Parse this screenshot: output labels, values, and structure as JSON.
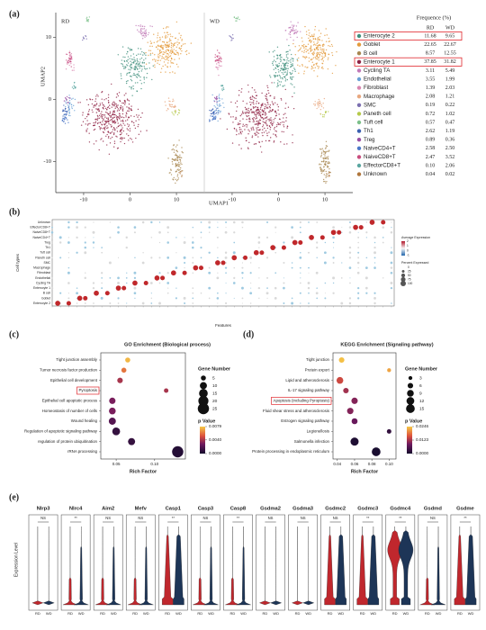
{
  "chart_data": [
    {
      "type": "scatter",
      "panel_label": "(a)",
      "facets": [
        "RD",
        "WD"
      ],
      "x_label": "UMAP1",
      "y_label": "UMAP2",
      "xlim": [
        -16,
        16
      ],
      "ylim": [
        -15,
        14
      ],
      "xticks": [
        -10,
        0,
        10
      ],
      "yticks": [
        -10,
        0,
        10
      ],
      "table": {
        "title": "Frequence (%)",
        "columns": [
          "RD",
          "WD"
        ],
        "highlight_rows": [
          0,
          3
        ],
        "rows": [
          {
            "name": "Enterocyte 2",
            "color": "#3f8f7c",
            "values": [
              "11.68",
              "9.65"
            ]
          },
          {
            "name": "Goblet",
            "color": "#e39a3b",
            "values": [
              "22.65",
              "22.67"
            ]
          },
          {
            "name": "B cell",
            "color": "#a8864f",
            "values": [
              "8.57",
              "12.55"
            ]
          },
          {
            "name": "Enterocyte 1",
            "color": "#8e2142",
            "values": [
              "37.85",
              "31.82"
            ]
          },
          {
            "name": "Cycling TA",
            "color": "#c27ab8",
            "values": [
              "3.11",
              "5.49"
            ]
          },
          {
            "name": "Endothelial",
            "color": "#6aa1d6",
            "values": [
              "3.55",
              "1.99"
            ]
          },
          {
            "name": "Fibroblast",
            "color": "#d986b0",
            "values": [
              "1.39",
              "2.03"
            ]
          },
          {
            "name": "Macrophage",
            "color": "#e8a77f",
            "values": [
              "2.08",
              "1.21"
            ]
          },
          {
            "name": "SMC",
            "color": "#7b6fb0",
            "values": [
              "0.19",
              "0.22"
            ]
          },
          {
            "name": "Paneth cell",
            "color": "#b5c94a",
            "values": [
              "0.72",
              "1.02"
            ]
          },
          {
            "name": "Tuft cell",
            "color": "#7cc08a",
            "values": [
              "0.57",
              "0.47"
            ]
          },
          {
            "name": "Th1",
            "color": "#3b5fb0",
            "values": [
              "2.62",
              "1.19"
            ]
          },
          {
            "name": "Treg",
            "color": "#9a4fa3",
            "values": [
              "0.89",
              "0.36"
            ]
          },
          {
            "name": "NaiveCD4+T",
            "color": "#4c78c8",
            "values": [
              "2.58",
              "2.50"
            ]
          },
          {
            "name": "NaiveCD8+T",
            "color": "#c84c7e",
            "values": [
              "2.47",
              "3.52"
            ]
          },
          {
            "name": "EffectorCD8+T",
            "color": "#5aa6a0",
            "values": [
              "0.10",
              "2.06"
            ]
          },
          {
            "name": "Unknown",
            "color": "#b0763c",
            "values": [
              "0.04",
              "0.02"
            ]
          }
        ]
      }
    },
    {
      "type": "dotplot",
      "panel_label": "(b)",
      "y_label": "Cell types",
      "x_label": "Features",
      "xlim": [
        0,
        62
      ],
      "color_legend_title": "Average Expression",
      "color_legend_ticks": [
        2,
        1,
        0,
        -1
      ],
      "size_legend_title": "Percent Expressed",
      "size_legend_ticks": [
        0,
        25,
        50,
        75,
        100
      ],
      "points": {
        "x": [
          1,
          3,
          5,
          6,
          8,
          10,
          12,
          13,
          15,
          17,
          19,
          20,
          22,
          24,
          26,
          27,
          30,
          31,
          33,
          35,
          37,
          38,
          40,
          42,
          44,
          45,
          47,
          49,
          51,
          52,
          55,
          56,
          58,
          60
        ],
        "y": [
          0,
          0,
          1,
          1,
          2,
          2,
          3,
          3,
          4,
          4,
          5,
          5,
          6,
          6,
          7,
          7,
          8,
          8,
          9,
          9,
          10,
          10,
          11,
          11,
          12,
          12,
          13,
          13,
          14,
          14,
          15,
          15,
          16,
          16
        ],
        "size": [
          90,
          70,
          90,
          70,
          90,
          70,
          90,
          70,
          90,
          70,
          90,
          70,
          90,
          70,
          90,
          70,
          90,
          70,
          90,
          70,
          90,
          70,
          90,
          70,
          90,
          70,
          90,
          70,
          90,
          70,
          90,
          70,
          90,
          70
        ]
      }
    },
    {
      "type": "bubble",
      "panel_label": "(c)",
      "title": "GO Enrichment (Biological process)",
      "categories": [
        "Tight junction assembly",
        "Tumor necrosis factor production",
        "Epithelial cell development",
        "Pyroptosis",
        "Epithelial cell apoptotic process",
        "Homeostasis of number of cells",
        "Wound healing",
        "Regulation of apoptotic signaling pathway",
        "regulation of protein ubiquitination",
        "rRNA processing"
      ],
      "x": [
        0.065,
        0.06,
        0.055,
        0.115,
        0.045,
        0.045,
        0.045,
        0.05,
        0.07,
        0.13
      ],
      "size": [
        5,
        5,
        6,
        4,
        8,
        9,
        10,
        12,
        10,
        25
      ],
      "p_value": [
        0.0075,
        0.006,
        0.004,
        0.004,
        0.003,
        0.003,
        0.002,
        0.001,
        0.001,
        0.0005
      ],
      "highlight": 3,
      "x_label": "Rich Factor",
      "xlim": [
        0.03,
        0.14
      ],
      "xticks": [
        0.05,
        {
          "value": 0.1,
          "label": "0.10"
        }
      ],
      "size_legend_title": "Gene Number",
      "size_legend": [
        5,
        10,
        15,
        20,
        25
      ],
      "color_legend_title": "p Value",
      "clim": [
        0,
        0.0079
      ],
      "color_legend": [
        0.0079,
        {
          "value": 0.004,
          "label": "0.0040"
        },
        {
          "value": 0,
          "label": "0.0000"
        }
      ]
    },
    {
      "type": "bubble",
      "panel_label": "(d)",
      "title": "KEGG Enrichment (Signaling pathway)",
      "categories": [
        "Tight junction",
        "Protein export",
        "Lipid and atherosclerosis",
        "IL-17 signaling pathway",
        "Apoptosis (including Pyroptosis)",
        "Fluid shear stress and atherosclerosis",
        "Estrogen signaling pathway",
        "Legionellosis",
        "Salmonella infection",
        "Protein processing in endoplasmic reticulum"
      ],
      "x": [
        0.045,
        0.1,
        0.043,
        0.05,
        0.06,
        0.055,
        0.06,
        0.1,
        0.06,
        0.085
      ],
      "size": [
        6,
        3,
        9,
        6,
        8,
        8,
        7,
        4,
        13,
        15
      ],
      "p_value": [
        0.024,
        0.022,
        0.015,
        0.012,
        0.01,
        0.01,
        0.008,
        0.003,
        0.001,
        0.0005
      ],
      "highlight": 4,
      "x_label": "Rich Factor",
      "xlim": [
        0.035,
        0.108
      ],
      "xticks": [
        0.04,
        0.06,
        0.08,
        {
          "value": 0.1,
          "label": "0.10"
        }
      ],
      "size_legend_title": "Gene Number",
      "size_legend": [
        3,
        6,
        9,
        12,
        15
      ],
      "color_legend_title": "p Value",
      "clim": [
        0,
        0.0246
      ],
      "color_legend": [
        0.0246,
        0.0123,
        {
          "value": 0,
          "label": "0.0000"
        }
      ]
    },
    {
      "type": "violin",
      "panel_label": "(e)",
      "y_label": "Expression Level",
      "groups": [
        "RD",
        "WD"
      ],
      "group_colors": [
        "#c0272d",
        "#1d3557"
      ],
      "genes": [
        "Nlrp3",
        "Nlrc4",
        "Aim2",
        "Mefv",
        "Casp1",
        "Casp3",
        "Casp8",
        "Gsdma2",
        "Gsdma3",
        "Gsdmc2",
        "Gsdmc3",
        "Gsdmc4",
        "Gsdmd",
        "Gsdme"
      ],
      "significance": [
        "NS",
        "**",
        "NS",
        "NS",
        "**",
        "NS",
        "**",
        "NS",
        "NS",
        "NS",
        "**",
        "**",
        "NS",
        "**"
      ]
    }
  ]
}
